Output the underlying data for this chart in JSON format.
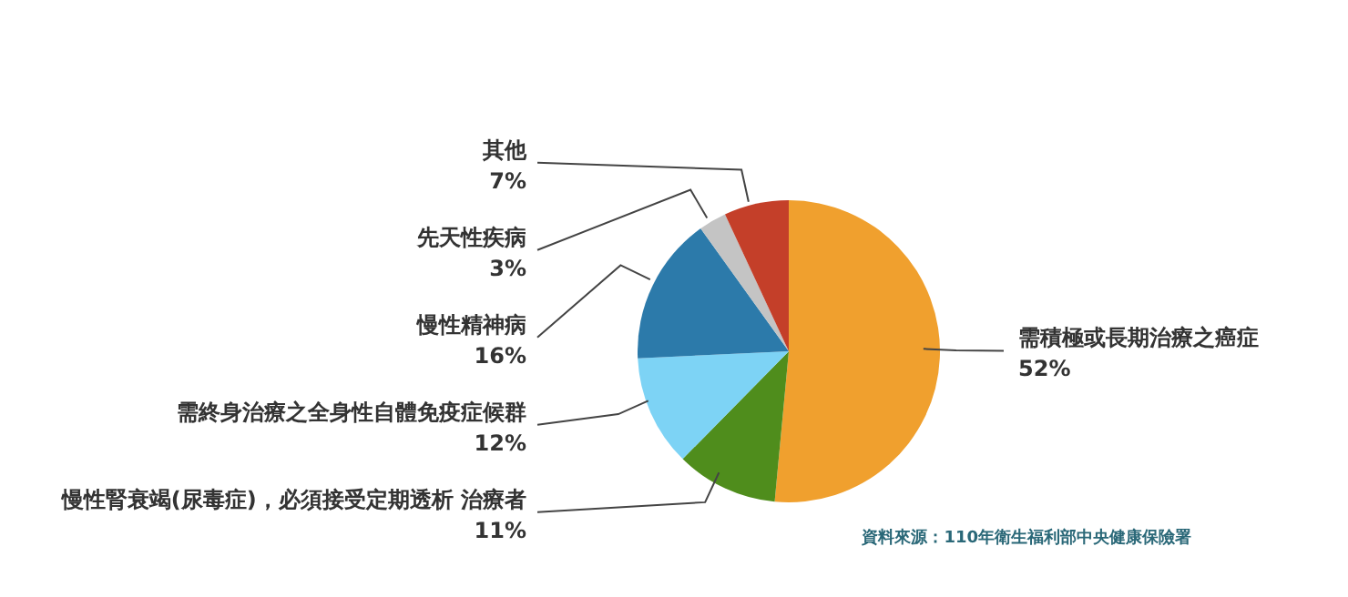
{
  "chart_data": {
    "type": "pie",
    "categories": [
      "需積極或長期治療之癌症",
      "慢性腎衰竭(尿毒症)，必須接受定期透析 治療者",
      "需終身治療之全身性自體免疫症候群",
      "慢性精神病",
      "先天性疾病",
      "其他"
    ],
    "values": [
      52,
      11,
      12,
      16,
      3,
      7
    ],
    "value_labels": [
      "52%",
      "11%",
      "12%",
      "16%",
      "3%",
      "7%"
    ],
    "colors": [
      "#f0a02e",
      "#4f8d1c",
      "#7dd3f5",
      "#2c7aaa",
      "#c4c4c4",
      "#c43f29"
    ],
    "annotations": [
      "資料來源：110年衛生福利部中央健康保險署"
    ]
  }
}
